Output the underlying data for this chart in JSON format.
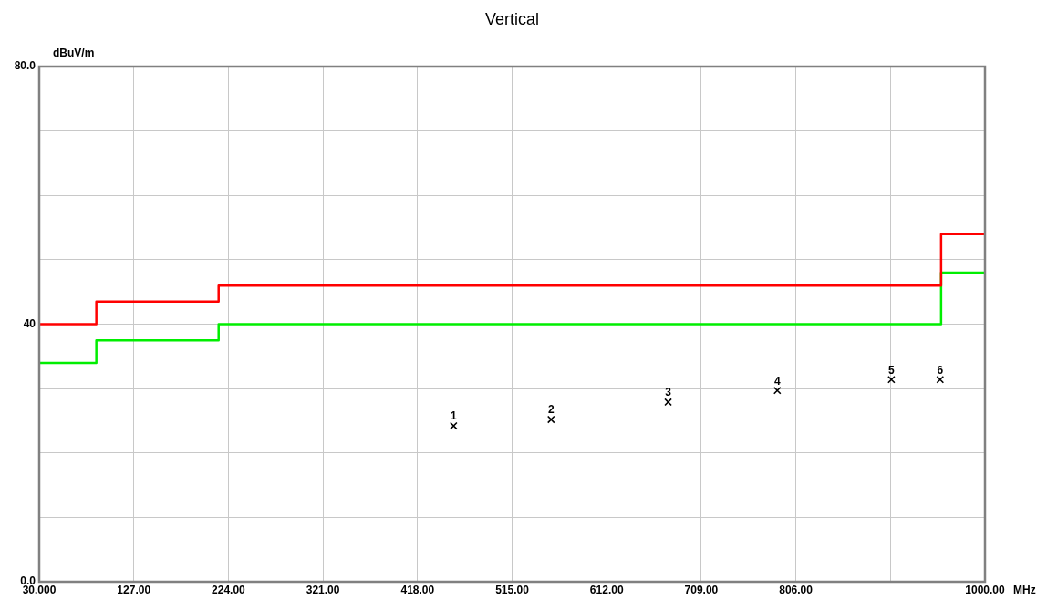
{
  "chart_data": {
    "type": "step",
    "title": "Vertical",
    "xlabel": "MHz",
    "ylabel": "dBuV/m",
    "xlim": [
      30,
      1000
    ],
    "ylim": [
      0,
      80
    ],
    "xticks": [
      {
        "value": 30,
        "label": "30.000"
      },
      {
        "value": 127,
        "label": "127.00"
      },
      {
        "value": 224,
        "label": "224.00"
      },
      {
        "value": 321,
        "label": "321.00"
      },
      {
        "value": 418,
        "label": "418.00"
      },
      {
        "value": 515,
        "label": "515.00"
      },
      {
        "value": 612,
        "label": "612.00"
      },
      {
        "value": 709,
        "label": "709.00"
      },
      {
        "value": 806,
        "label": "806.00"
      },
      {
        "value": 903,
        "label": null
      },
      {
        "value": 1000,
        "label": "1000.00"
      }
    ],
    "yticks": [
      {
        "value": 0,
        "label": "0.0"
      },
      {
        "value": 10,
        "label": null
      },
      {
        "value": 20,
        "label": null
      },
      {
        "value": 30,
        "label": null
      },
      {
        "value": 40,
        "label": "40"
      },
      {
        "value": 50,
        "label": null
      },
      {
        "value": 60,
        "label": null
      },
      {
        "value": 70,
        "label": null
      },
      {
        "value": 80,
        "label": "80.0"
      }
    ],
    "grid": true,
    "legend": false,
    "series": [
      {
        "color": "#ff0000",
        "x": [
          30,
          88.6,
          214,
          955,
          1000
        ],
        "values": [
          40,
          43.5,
          46,
          54,
          54
        ]
      },
      {
        "color": "#00ee00",
        "x": [
          30,
          88.6,
          214,
          955,
          1000
        ],
        "values": [
          34,
          37.5,
          40,
          48,
          48
        ]
      },
      {
        "type": "scatter",
        "marker": "cross",
        "color": "#000000",
        "x": [
          455,
          555,
          675,
          787,
          904,
          954
        ],
        "values": [
          24.2,
          25.2,
          27.9,
          29.7,
          31.4,
          31.4
        ]
      }
    ],
    "annotations": [
      {
        "text": "1",
        "x": 455,
        "y": 24.2
      },
      {
        "text": "2",
        "x": 555,
        "y": 25.2
      },
      {
        "text": "3",
        "x": 675,
        "y": 27.9
      },
      {
        "text": "4",
        "x": 787,
        "y": 29.7
      },
      {
        "text": "5",
        "x": 904,
        "y": 31.4
      },
      {
        "text": "6",
        "x": 954,
        "y": 31.4
      }
    ]
  }
}
